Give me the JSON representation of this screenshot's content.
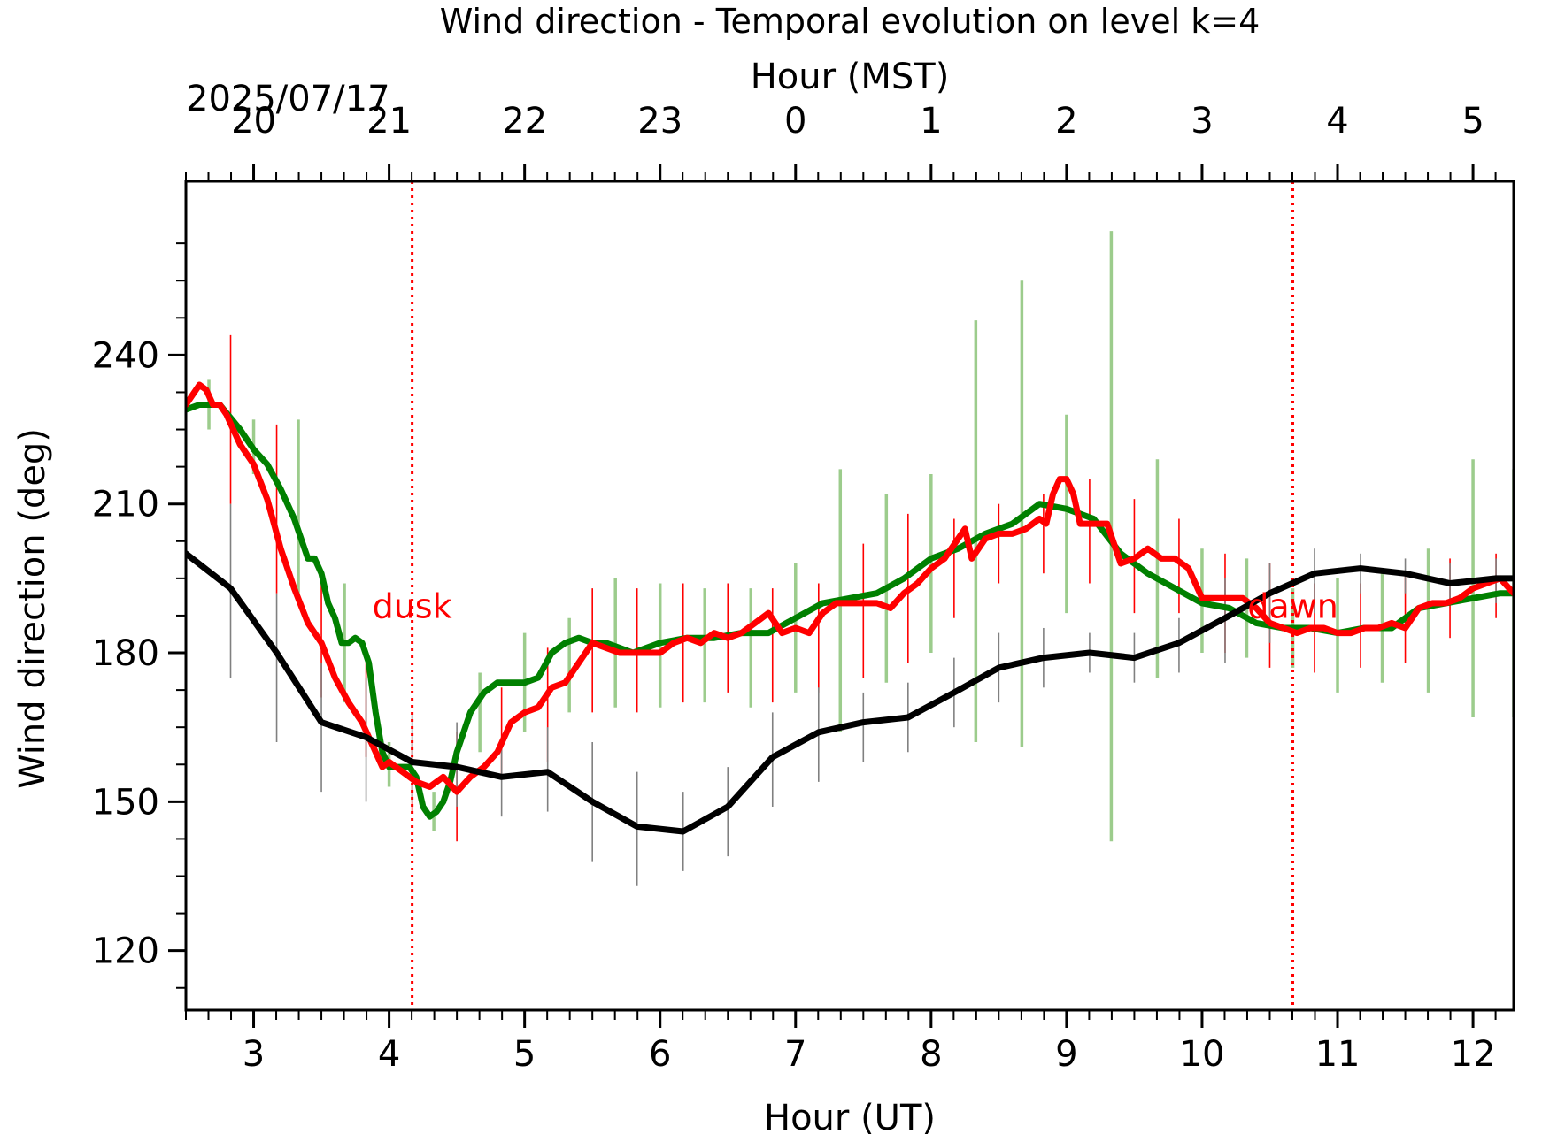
{
  "chart_data": {
    "type": "line",
    "title": "Wind direction - Temporal evolution on level k=4",
    "xlabel": "Hour (UT)",
    "x2label": "Hour (MST)",
    "ylabel": "Wind direction (deg)",
    "date_label": "2025/07/17",
    "xlim": [
      2.5,
      12.3
    ],
    "ylim": [
      108,
      275
    ],
    "x_ticks": [
      3,
      4,
      5,
      6,
      7,
      8,
      9,
      10,
      11,
      12
    ],
    "x_tick_labels": [
      "3",
      "4",
      "5",
      "6",
      "7",
      "8",
      "9",
      "10",
      "11",
      "12"
    ],
    "x2_ticks": [
      3,
      4,
      5,
      6,
      7,
      8,
      9,
      10,
      11,
      12
    ],
    "x2_tick_labels": [
      "20",
      "21",
      "22",
      "23",
      "0",
      "1",
      "2",
      "3",
      "4",
      "5"
    ],
    "y_ticks": [
      120,
      150,
      180,
      210,
      240
    ],
    "y_tick_labels": [
      "120",
      "150",
      "180",
      "210",
      "240"
    ],
    "annotations": [
      {
        "text": "dusk",
        "x": 4.17,
        "y": 187,
        "color": "#ff0000"
      },
      {
        "text": "dawn",
        "x": 10.67,
        "y": 187,
        "color": "#ff0000"
      }
    ],
    "vlines": [
      {
        "x": 4.17,
        "color": "#ff0000",
        "style": "dotted"
      },
      {
        "x": 10.67,
        "color": "#ff0000",
        "style": "dotted"
      }
    ],
    "colors": {
      "green": "#008000",
      "red": "#ff0000",
      "black": "#000000",
      "green_err": "#9ccc8c",
      "gray_err": "#808080"
    },
    "series": [
      {
        "color": "#008000",
        "x": [
          2.5,
          2.6,
          2.75,
          2.9,
          3.0,
          3.1,
          3.2,
          3.3,
          3.4,
          3.45,
          3.5,
          3.55,
          3.6,
          3.65,
          3.7,
          3.75,
          3.8,
          3.85,
          3.9,
          3.95,
          4.0,
          4.05,
          4.1,
          4.15,
          4.2,
          4.25,
          4.3,
          4.35,
          4.4,
          4.45,
          4.5,
          4.6,
          4.7,
          4.8,
          4.9,
          5.0,
          5.1,
          5.2,
          5.3,
          5.4,
          5.5,
          5.6,
          5.8,
          6.0,
          6.2,
          6.4,
          6.6,
          6.8,
          7.0,
          7.2,
          7.4,
          7.6,
          7.8,
          8.0,
          8.2,
          8.4,
          8.6,
          8.8,
          9.0,
          9.2,
          9.4,
          9.6,
          9.8,
          10.0,
          10.2,
          10.4,
          10.6,
          10.8,
          11.0,
          11.2,
          11.4,
          11.6,
          11.8,
          12.0,
          12.2,
          12.3
        ],
        "values": [
          229,
          230,
          230,
          225,
          221,
          218,
          213,
          207,
          199,
          199,
          196,
          190,
          187,
          182,
          182,
          183,
          182,
          178,
          168,
          160,
          157,
          157,
          157,
          157,
          155,
          149,
          147,
          148,
          150,
          154,
          160,
          168,
          172,
          174,
          174,
          174,
          175,
          180,
          182,
          183,
          182,
          182,
          180,
          182,
          183,
          183,
          184,
          184,
          187,
          190,
          191,
          192,
          195,
          199,
          201,
          204,
          206,
          210,
          209,
          207,
          200,
          196,
          193,
          190,
          189,
          186,
          185,
          185,
          184,
          185,
          185,
          189,
          190,
          191,
          192,
          192
        ]
      },
      {
        "color": "#ff0000",
        "x": [
          2.5,
          2.6,
          2.65,
          2.7,
          2.75,
          2.8,
          2.9,
          3.0,
          3.1,
          3.15,
          3.2,
          3.3,
          3.4,
          3.5,
          3.6,
          3.7,
          3.8,
          3.9,
          3.95,
          4.0,
          4.1,
          4.2,
          4.3,
          4.4,
          4.5,
          4.6,
          4.7,
          4.8,
          4.85,
          4.9,
          5.0,
          5.1,
          5.2,
          5.3,
          5.4,
          5.5,
          5.6,
          5.7,
          5.8,
          5.9,
          6.0,
          6.1,
          6.2,
          6.3,
          6.4,
          6.5,
          6.6,
          6.7,
          6.8,
          6.9,
          7.0,
          7.1,
          7.2,
          7.3,
          7.4,
          7.5,
          7.6,
          7.7,
          7.8,
          7.9,
          8.0,
          8.1,
          8.2,
          8.25,
          8.3,
          8.4,
          8.5,
          8.6,
          8.7,
          8.8,
          8.85,
          8.9,
          8.95,
          9.0,
          9.05,
          9.1,
          9.2,
          9.3,
          9.4,
          9.5,
          9.6,
          9.7,
          9.8,
          9.9,
          10.0,
          10.1,
          10.2,
          10.3,
          10.4,
          10.5,
          10.6,
          10.7,
          10.8,
          10.9,
          11.0,
          11.1,
          11.2,
          11.3,
          11.4,
          11.5,
          11.6,
          11.7,
          11.8,
          11.9,
          12.0,
          12.1,
          12.2,
          12.3
        ],
        "values": [
          230,
          234,
          233,
          230,
          230,
          228,
          222,
          218,
          211,
          206,
          201,
          193,
          186,
          182,
          175,
          170,
          166,
          160,
          157,
          158,
          156,
          154,
          153,
          155,
          152,
          155,
          157,
          160,
          163,
          166,
          168,
          169,
          173,
          174,
          178,
          182,
          181,
          180,
          180,
          180,
          180,
          182,
          183,
          182,
          184,
          183,
          184,
          186,
          188,
          184,
          185,
          184,
          188,
          190,
          190,
          190,
          190,
          189,
          192,
          194,
          197,
          199,
          203,
          205,
          199,
          203,
          204,
          204,
          205,
          207,
          206,
          212,
          215,
          215,
          212,
          206,
          206,
          206,
          198,
          199,
          201,
          199,
          199,
          197,
          191,
          191,
          191,
          191,
          189,
          186,
          185,
          184,
          185,
          185,
          184,
          184,
          185,
          185,
          186,
          185,
          189,
          190,
          190,
          191,
          193,
          194,
          195,
          192
        ]
      },
      {
        "color": "#000000",
        "x": [
          2.5,
          2.83,
          3.17,
          3.5,
          3.83,
          4.17,
          4.5,
          4.83,
          5.17,
          5.5,
          5.83,
          6.17,
          6.5,
          6.83,
          7.17,
          7.5,
          7.83,
          8.17,
          8.5,
          8.83,
          9.17,
          9.5,
          9.83,
          10.17,
          10.5,
          10.83,
          11.17,
          11.5,
          11.83,
          12.17,
          12.3
        ],
        "values": [
          200,
          193,
          180,
          166,
          163,
          158,
          157,
          155,
          156,
          150,
          145,
          144,
          149,
          159,
          164,
          166,
          167,
          172,
          177,
          179,
          180,
          179,
          182,
          187,
          192,
          196,
          197,
          196,
          194,
          195,
          195
        ]
      }
    ],
    "error_bars": [
      {
        "color": "#9ccc8c",
        "x": [
          2.67,
          3.0,
          3.33,
          3.67,
          4.0,
          4.33,
          4.67,
          5.0,
          5.33,
          5.67,
          6.0,
          6.33,
          6.67,
          7.0,
          7.33,
          7.67,
          8.0,
          8.33,
          8.67,
          9.0,
          9.33,
          9.67,
          10.0,
          10.33,
          10.67,
          11.0,
          11.33,
          11.67,
          12.0,
          12.3
        ],
        "low": [
          225,
          216,
          191,
          170,
          153,
          144,
          160,
          164,
          168,
          169,
          169,
          170,
          169,
          172,
          164,
          174,
          180,
          162,
          161,
          188,
          142,
          175,
          180,
          179,
          177,
          172,
          174,
          172,
          167,
          167
        ],
        "high": [
          235,
          227,
          227,
          194,
          162,
          152,
          176,
          184,
          187,
          195,
          194,
          193,
          193,
          198,
          217,
          212,
          216,
          247,
          255,
          228,
          265,
          219,
          201,
          199,
          193,
          195,
          196,
          201,
          219,
          217
        ]
      },
      {
        "color": "#ff0000",
        "x": [
          2.83,
          3.17,
          3.5,
          3.83,
          4.17,
          4.5,
          4.83,
          5.17,
          5.5,
          5.83,
          6.17,
          6.5,
          6.83,
          7.17,
          7.5,
          7.83,
          8.17,
          8.5,
          8.83,
          9.17,
          9.5,
          9.83,
          10.17,
          10.5,
          10.83,
          11.17,
          11.5,
          11.83,
          12.17
        ],
        "low": [
          210,
          192,
          171,
          159,
          148,
          142,
          155,
          158,
          168,
          168,
          170,
          172,
          170,
          172,
          175,
          178,
          187,
          194,
          196,
          194,
          188,
          188,
          180,
          177,
          176,
          177,
          178,
          183,
          187
        ],
        "high": [
          244,
          226,
          196,
          178,
          162,
          164,
          173,
          181,
          193,
          193,
          194,
          194,
          193,
          194,
          202,
          208,
          207,
          210,
          212,
          215,
          211,
          207,
          200,
          198,
          194,
          194,
          196,
          199,
          200
        ]
      },
      {
        "color": "#808080",
        "x": [
          2.83,
          3.17,
          3.5,
          3.83,
          4.17,
          4.5,
          4.83,
          5.17,
          5.5,
          5.83,
          6.17,
          6.5,
          6.83,
          7.17,
          7.5,
          7.83,
          8.17,
          8.5,
          8.83,
          9.17,
          9.5,
          9.83,
          10.17,
          10.5,
          10.83,
          11.17,
          11.5,
          11.83,
          12.17
        ],
        "low": [
          175,
          162,
          152,
          150,
          150,
          149,
          147,
          148,
          138,
          133,
          136,
          139,
          149,
          154,
          158,
          160,
          165,
          170,
          173,
          176,
          174,
          176,
          178,
          182,
          188,
          192,
          192,
          190,
          190
        ],
        "high": [
          210,
          192,
          178,
          175,
          168,
          166,
          162,
          165,
          162,
          156,
          152,
          157,
          168,
          173,
          172,
          174,
          179,
          184,
          185,
          184,
          184,
          187,
          195,
          198,
          201,
          200,
          199,
          198,
          199
        ]
      }
    ]
  }
}
